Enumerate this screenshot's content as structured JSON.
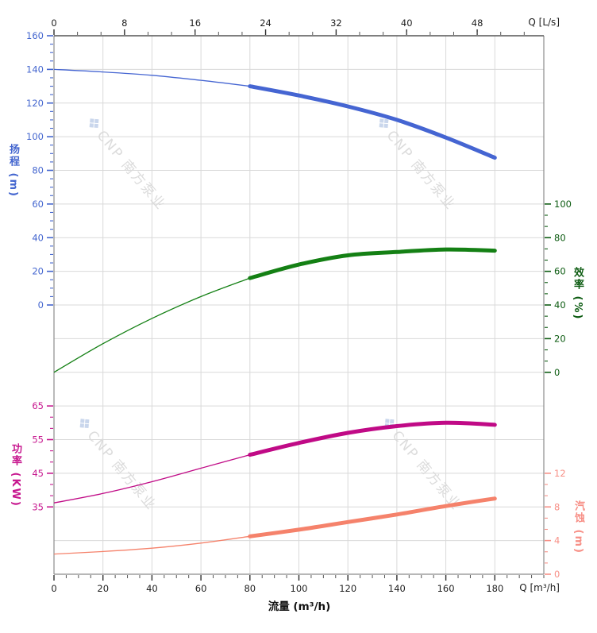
{
  "watermark": {
    "icon": "cnp-diamond-logo",
    "text": "CNP 南方泵业"
  },
  "chart_data": {
    "type": "line",
    "title": "",
    "flow_axis_bottom": {
      "title": "流量 (m³/h)",
      "unit_label": "Q [m³/h]",
      "ticks": [
        0,
        20,
        40,
        60,
        80,
        100,
        120,
        140,
        160,
        180
      ],
      "max": 200,
      "minor_step": 5
    },
    "flow_axis_top": {
      "unit_label": "Q [L/s]",
      "ticks": [
        0,
        8,
        16,
        24,
        32,
        40,
        48
      ],
      "m3h_per_Ls": 3.6,
      "minors_between": 2
    },
    "head_axis": {
      "title": "扬程",
      "unit": "(m)",
      "title_full": "扬程 (m)",
      "ticks": [
        160,
        140,
        120,
        100,
        80,
        60,
        40,
        20,
        0
      ],
      "minor_step": 5,
      "range": [
        0,
        160
      ],
      "color": "#4466cf"
    },
    "efficiency_axis": {
      "title": "效率",
      "unit": "(%)",
      "title_full": "效率 (%)",
      "ticks": [
        100,
        80,
        60,
        40,
        20,
        0
      ],
      "minors_between": 2,
      "range": [
        0,
        100
      ],
      "color": "#0d5c12"
    },
    "power_axis": {
      "title": "功率",
      "unit": "(KW)",
      "title_full": "功率 (KW)",
      "ticks": [
        65,
        55,
        45,
        35
      ],
      "minors_between": 2,
      "range": [
        35,
        65
      ],
      "color": "#c7188f"
    },
    "npsh_axis": {
      "title": "汽蚀",
      "unit": "(m)",
      "title_full": "汽蚀 (m)",
      "ticks": [
        12,
        8,
        4,
        0
      ],
      "minors_between": 2,
      "range": [
        0,
        12
      ],
      "color": "#f78f86"
    },
    "flow_points_m3h": [
      0,
      20,
      40,
      60,
      80,
      100,
      120,
      140,
      160,
      180
    ],
    "series": [
      {
        "name": "head",
        "axis": "head",
        "color": "#4565d2",
        "duty_start": 80,
        "values": [
          140,
          138.5,
          136.5,
          133.5,
          130,
          124.5,
          118,
          110,
          99.5,
          87.5
        ]
      },
      {
        "name": "efficiency",
        "axis": "efficiency",
        "color": "#148014",
        "duty_start": 80,
        "values": [
          0,
          17,
          32,
          45,
          56,
          64,
          69.5,
          71.5,
          73,
          72.3
        ]
      },
      {
        "name": "power",
        "axis": "power",
        "color": "#c00a86",
        "duty_start": 80,
        "values": [
          36.2,
          39,
          42.5,
          46.5,
          50.5,
          54,
          57,
          59,
          60,
          59.4
        ]
      },
      {
        "name": "npsh",
        "axis": "npsh",
        "color": "#f5826b",
        "duty_start": 80,
        "values": [
          2.4,
          2.7,
          3.1,
          3.7,
          4.5,
          5.3,
          6.2,
          7.1,
          8.1,
          9.0
        ]
      }
    ],
    "grid": {
      "on": true,
      "v_step_m3h": 20,
      "h_rows": 16
    }
  }
}
